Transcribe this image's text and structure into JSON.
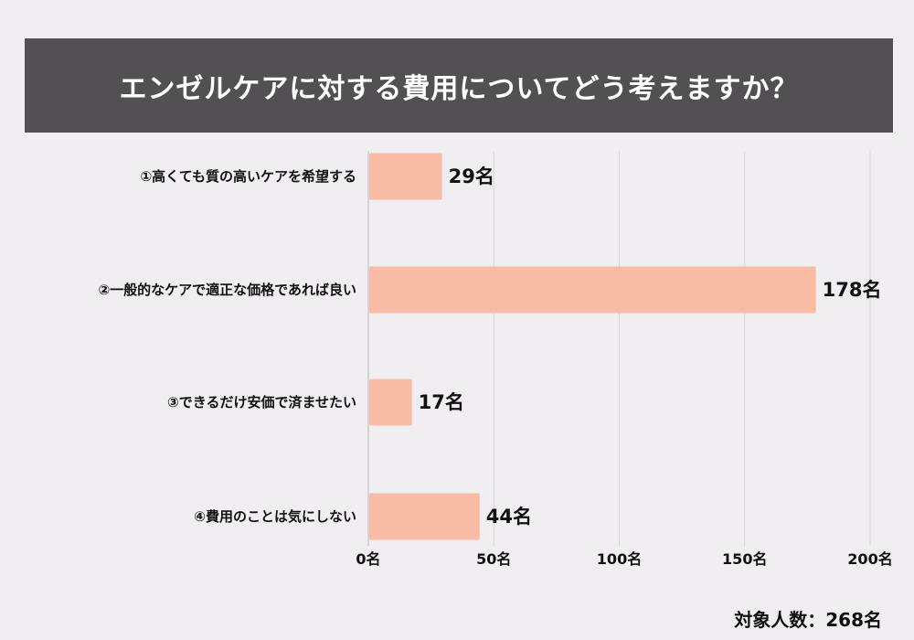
{
  "chart_data": {
    "type": "bar",
    "orientation": "horizontal",
    "title": "エンゼルケアに対する費用についてどう考えますか？",
    "categories": [
      "①高くても質の高いケアを希望する",
      "②一般的なケアで適正な価格であれば良い",
      "③できるだけ安価で済ませたい",
      "④費用のことは気にしない"
    ],
    "values": [
      29,
      178,
      17,
      44
    ],
    "value_labels": [
      "29名",
      "178名",
      "17名",
      "44名"
    ],
    "xlim": [
      0,
      200
    ],
    "xticks": [
      0,
      50,
      100,
      150,
      200
    ],
    "xtick_labels": [
      "0名",
      "50名",
      "100名",
      "150名",
      "200名"
    ],
    "grid": true,
    "bar_color": "#f8bba6",
    "annotation": "対象人数：268名"
  }
}
